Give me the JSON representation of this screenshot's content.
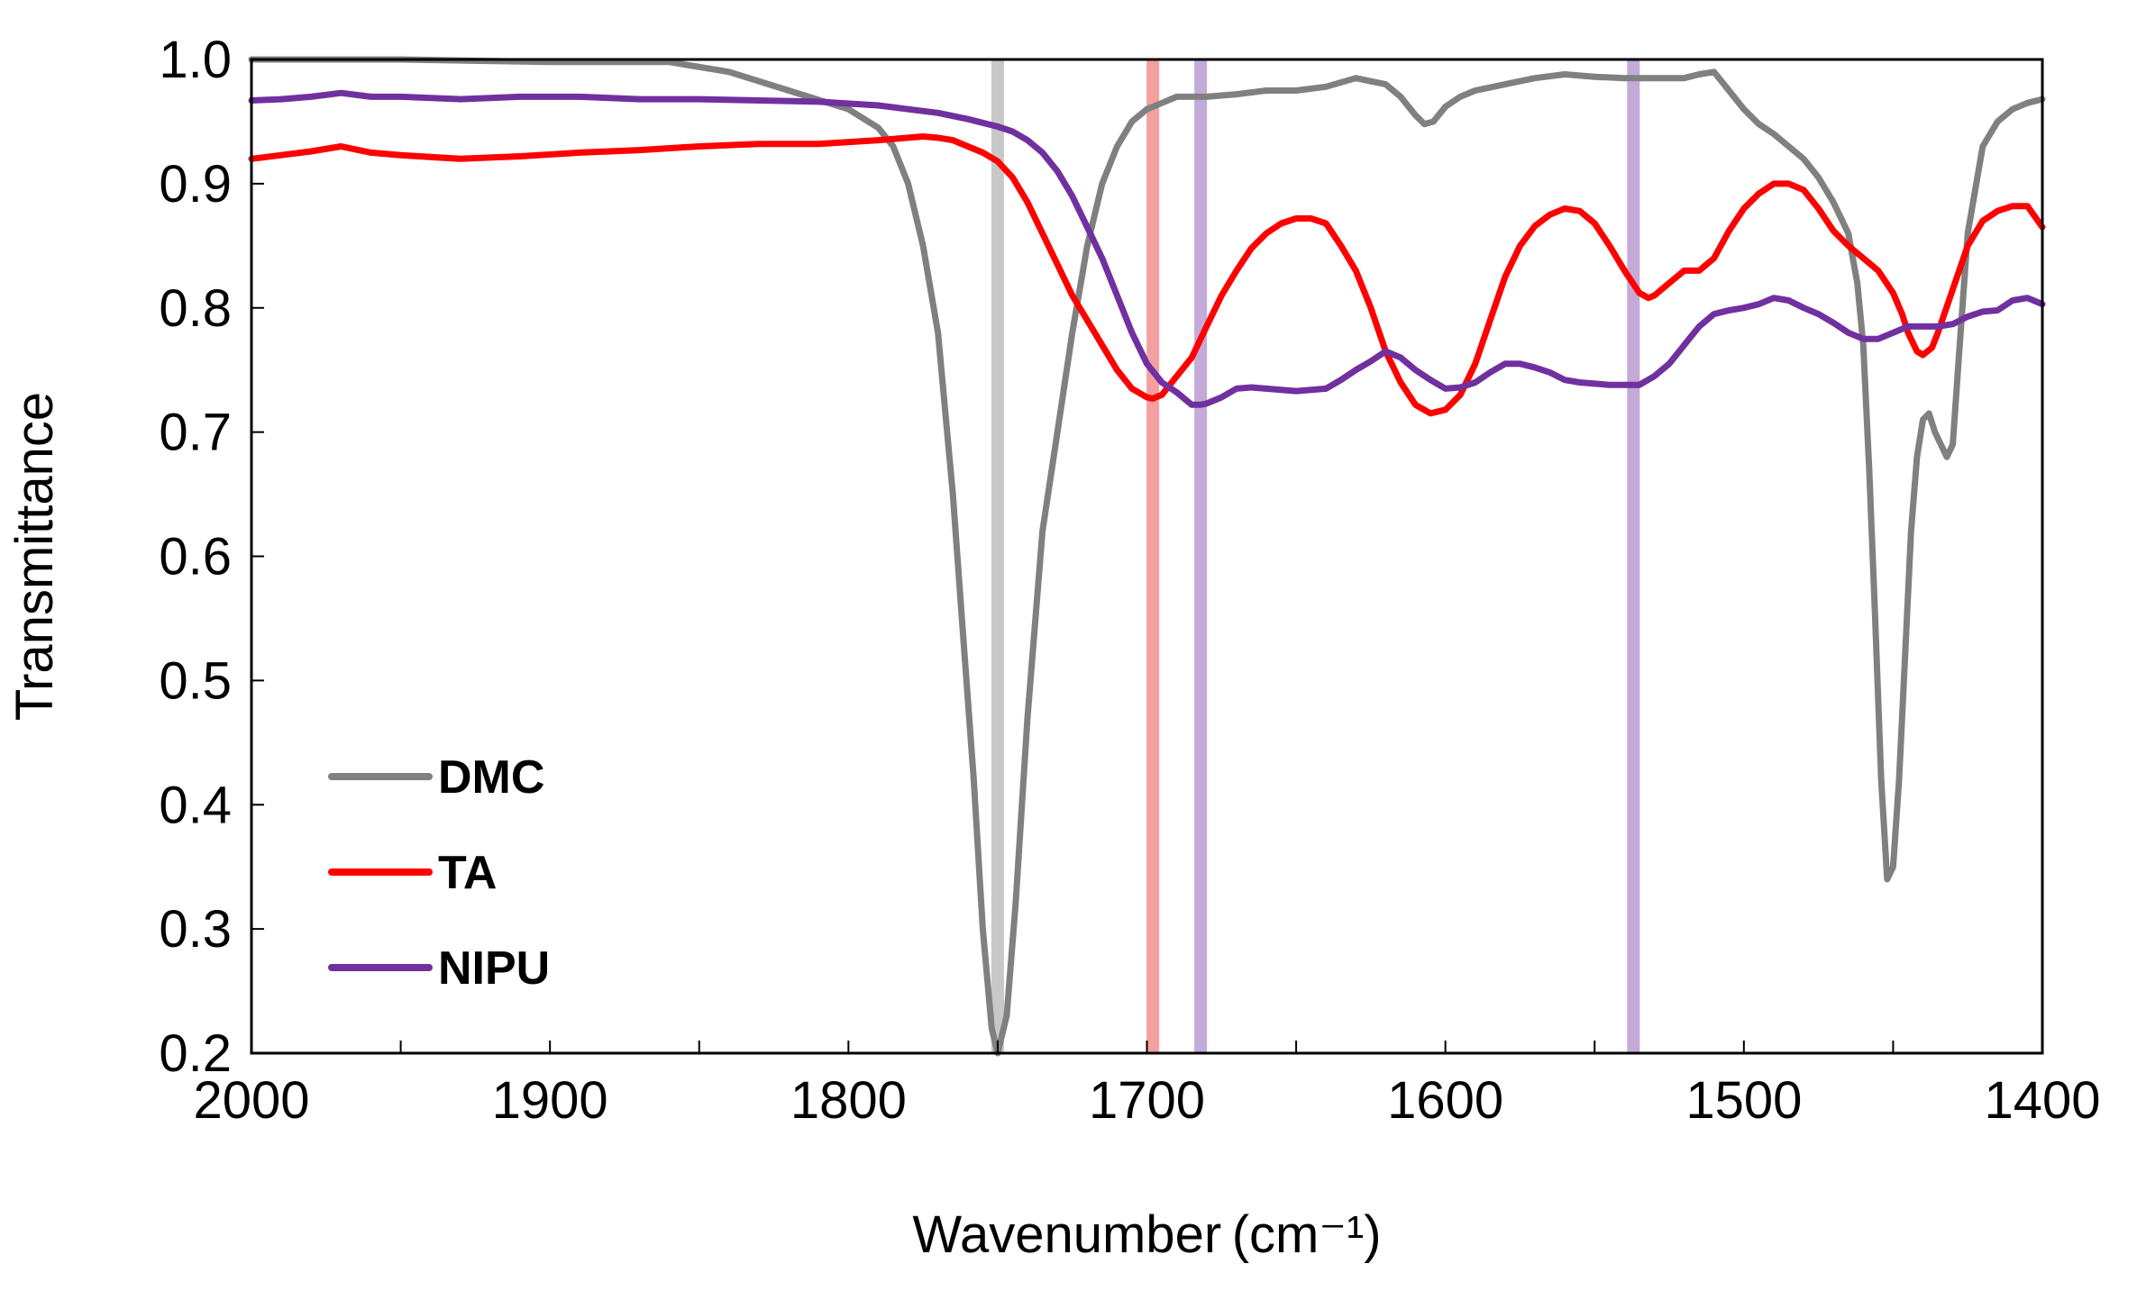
{
  "chart_data": {
    "type": "line",
    "title": "",
    "xlabel": "Wavenumber (cm⁻¹)",
    "ylabel": "Transmittance",
    "xlim": [
      2000,
      1400
    ],
    "ylim": [
      0.2,
      1.0
    ],
    "x_ticks": [
      2000,
      1900,
      1800,
      1700,
      1600,
      1500,
      1400
    ],
    "x_tick_labels": [
      "2000",
      "1900",
      "1800",
      "1700",
      "1600",
      "1500",
      "1400"
    ],
    "y_ticks": [
      0.2,
      0.3,
      0.4,
      0.5,
      0.6,
      0.7,
      0.8,
      0.9,
      1.0
    ],
    "y_tick_labels": [
      "0.2",
      "0.3",
      "0.4",
      "0.5",
      "0.6",
      "0.7",
      "0.8",
      "0.9",
      "1.0"
    ],
    "grid": false,
    "legend_position": "bottom-left",
    "reference_lines": [
      {
        "x": 1750,
        "color": "#c8c8c8",
        "series": "DMC"
      },
      {
        "x": 1698,
        "color": "#f5a0a0",
        "series": "TA"
      },
      {
        "x": 1682,
        "color": "#c3aad8",
        "series": "NIPU"
      },
      {
        "x": 1537,
        "color": "#c3aad8",
        "series": "NIPU"
      }
    ],
    "series": [
      {
        "name": "DMC",
        "color": "#808080",
        "x": [
          2000,
          1950,
          1900,
          1860,
          1840,
          1820,
          1800,
          1790,
          1785,
          1780,
          1775,
          1770,
          1765,
          1762,
          1758,
          1755,
          1752,
          1750,
          1747,
          1744,
          1740,
          1735,
          1730,
          1725,
          1720,
          1715,
          1710,
          1705,
          1700,
          1695,
          1690,
          1680,
          1670,
          1660,
          1650,
          1640,
          1630,
          1620,
          1615,
          1610,
          1607,
          1604,
          1600,
          1595,
          1590,
          1580,
          1570,
          1560,
          1550,
          1540,
          1530,
          1520,
          1515,
          1510,
          1505,
          1500,
          1495,
          1490,
          1485,
          1480,
          1475,
          1470,
          1465,
          1462,
          1460,
          1458,
          1456,
          1454,
          1452,
          1450,
          1448,
          1446,
          1444,
          1442,
          1440,
          1438,
          1436,
          1434,
          1432,
          1430,
          1428,
          1425,
          1420,
          1415,
          1410,
          1405,
          1400
        ],
        "values": [
          1.0,
          1.0,
          0.998,
          0.998,
          0.99,
          0.975,
          0.96,
          0.945,
          0.93,
          0.9,
          0.85,
          0.78,
          0.65,
          0.55,
          0.42,
          0.3,
          0.22,
          0.2,
          0.23,
          0.32,
          0.47,
          0.62,
          0.7,
          0.78,
          0.85,
          0.9,
          0.93,
          0.95,
          0.96,
          0.965,
          0.97,
          0.97,
          0.972,
          0.975,
          0.975,
          0.978,
          0.985,
          0.98,
          0.97,
          0.955,
          0.948,
          0.95,
          0.962,
          0.97,
          0.975,
          0.98,
          0.985,
          0.988,
          0.986,
          0.985,
          0.985,
          0.985,
          0.988,
          0.99,
          0.975,
          0.96,
          0.948,
          0.94,
          0.93,
          0.92,
          0.905,
          0.885,
          0.86,
          0.82,
          0.77,
          0.67,
          0.55,
          0.42,
          0.34,
          0.35,
          0.42,
          0.52,
          0.62,
          0.68,
          0.71,
          0.715,
          0.7,
          0.69,
          0.68,
          0.69,
          0.76,
          0.86,
          0.93,
          0.95,
          0.96,
          0.965,
          0.968
        ]
      },
      {
        "name": "TA",
        "color": "#ff0000",
        "x": [
          2000,
          1990,
          1980,
          1970,
          1960,
          1950,
          1930,
          1910,
          1890,
          1870,
          1850,
          1830,
          1810,
          1790,
          1780,
          1775,
          1770,
          1765,
          1760,
          1755,
          1750,
          1745,
          1740,
          1735,
          1730,
          1725,
          1720,
          1715,
          1710,
          1705,
          1700,
          1698,
          1695,
          1690,
          1685,
          1680,
          1675,
          1670,
          1665,
          1660,
          1655,
          1650,
          1645,
          1640,
          1635,
          1630,
          1625,
          1620,
          1615,
          1610,
          1605,
          1600,
          1595,
          1590,
          1585,
          1580,
          1575,
          1570,
          1565,
          1560,
          1555,
          1550,
          1545,
          1540,
          1535,
          1532,
          1530,
          1525,
          1520,
          1515,
          1510,
          1505,
          1500,
          1495,
          1490,
          1485,
          1480,
          1475,
          1470,
          1465,
          1460,
          1455,
          1450,
          1447,
          1445,
          1442,
          1440,
          1437,
          1435,
          1430,
          1425,
          1420,
          1415,
          1410,
          1405,
          1400
        ],
        "values": [
          0.92,
          0.923,
          0.926,
          0.93,
          0.925,
          0.923,
          0.92,
          0.922,
          0.925,
          0.927,
          0.93,
          0.932,
          0.932,
          0.935,
          0.937,
          0.938,
          0.937,
          0.935,
          0.93,
          0.925,
          0.918,
          0.905,
          0.885,
          0.86,
          0.835,
          0.81,
          0.79,
          0.77,
          0.75,
          0.735,
          0.728,
          0.727,
          0.73,
          0.745,
          0.76,
          0.785,
          0.81,
          0.83,
          0.848,
          0.86,
          0.868,
          0.872,
          0.872,
          0.868,
          0.85,
          0.83,
          0.8,
          0.765,
          0.74,
          0.722,
          0.715,
          0.718,
          0.73,
          0.755,
          0.79,
          0.825,
          0.85,
          0.866,
          0.875,
          0.88,
          0.878,
          0.868,
          0.85,
          0.83,
          0.812,
          0.808,
          0.81,
          0.82,
          0.83,
          0.83,
          0.84,
          0.862,
          0.88,
          0.892,
          0.9,
          0.9,
          0.895,
          0.88,
          0.862,
          0.85,
          0.84,
          0.83,
          0.812,
          0.795,
          0.78,
          0.765,
          0.762,
          0.768,
          0.78,
          0.815,
          0.85,
          0.87,
          0.878,
          0.882,
          0.882,
          0.865
        ]
      },
      {
        "name": "NIPU",
        "color": "#7030a0",
        "x": [
          2000,
          1990,
          1980,
          1970,
          1960,
          1950,
          1930,
          1910,
          1890,
          1870,
          1850,
          1830,
          1810,
          1790,
          1780,
          1770,
          1760,
          1750,
          1745,
          1740,
          1735,
          1730,
          1725,
          1720,
          1715,
          1710,
          1705,
          1700,
          1695,
          1690,
          1685,
          1682,
          1680,
          1675,
          1670,
          1665,
          1660,
          1650,
          1640,
          1635,
          1630,
          1625,
          1620,
          1615,
          1610,
          1605,
          1600,
          1595,
          1590,
          1585,
          1580,
          1575,
          1570,
          1565,
          1560,
          1555,
          1550,
          1545,
          1540,
          1535,
          1530,
          1525,
          1520,
          1515,
          1510,
          1505,
          1500,
          1495,
          1490,
          1485,
          1480,
          1475,
          1470,
          1465,
          1460,
          1455,
          1450,
          1445,
          1440,
          1435,
          1430,
          1425,
          1420,
          1415,
          1410,
          1405,
          1400
        ],
        "values": [
          0.967,
          0.968,
          0.97,
          0.973,
          0.97,
          0.97,
          0.968,
          0.97,
          0.97,
          0.968,
          0.968,
          0.967,
          0.966,
          0.963,
          0.96,
          0.957,
          0.952,
          0.946,
          0.942,
          0.935,
          0.925,
          0.91,
          0.89,
          0.865,
          0.84,
          0.81,
          0.78,
          0.755,
          0.74,
          0.732,
          0.722,
          0.722,
          0.723,
          0.728,
          0.735,
          0.736,
          0.735,
          0.733,
          0.735,
          0.742,
          0.75,
          0.757,
          0.765,
          0.76,
          0.75,
          0.742,
          0.735,
          0.736,
          0.74,
          0.748,
          0.755,
          0.755,
          0.752,
          0.748,
          0.742,
          0.74,
          0.739,
          0.738,
          0.738,
          0.738,
          0.745,
          0.755,
          0.77,
          0.785,
          0.795,
          0.798,
          0.8,
          0.803,
          0.808,
          0.806,
          0.8,
          0.795,
          0.788,
          0.78,
          0.775,
          0.775,
          0.78,
          0.785,
          0.785,
          0.785,
          0.787,
          0.793,
          0.797,
          0.798,
          0.806,
          0.808,
          0.803
        ]
      }
    ]
  }
}
